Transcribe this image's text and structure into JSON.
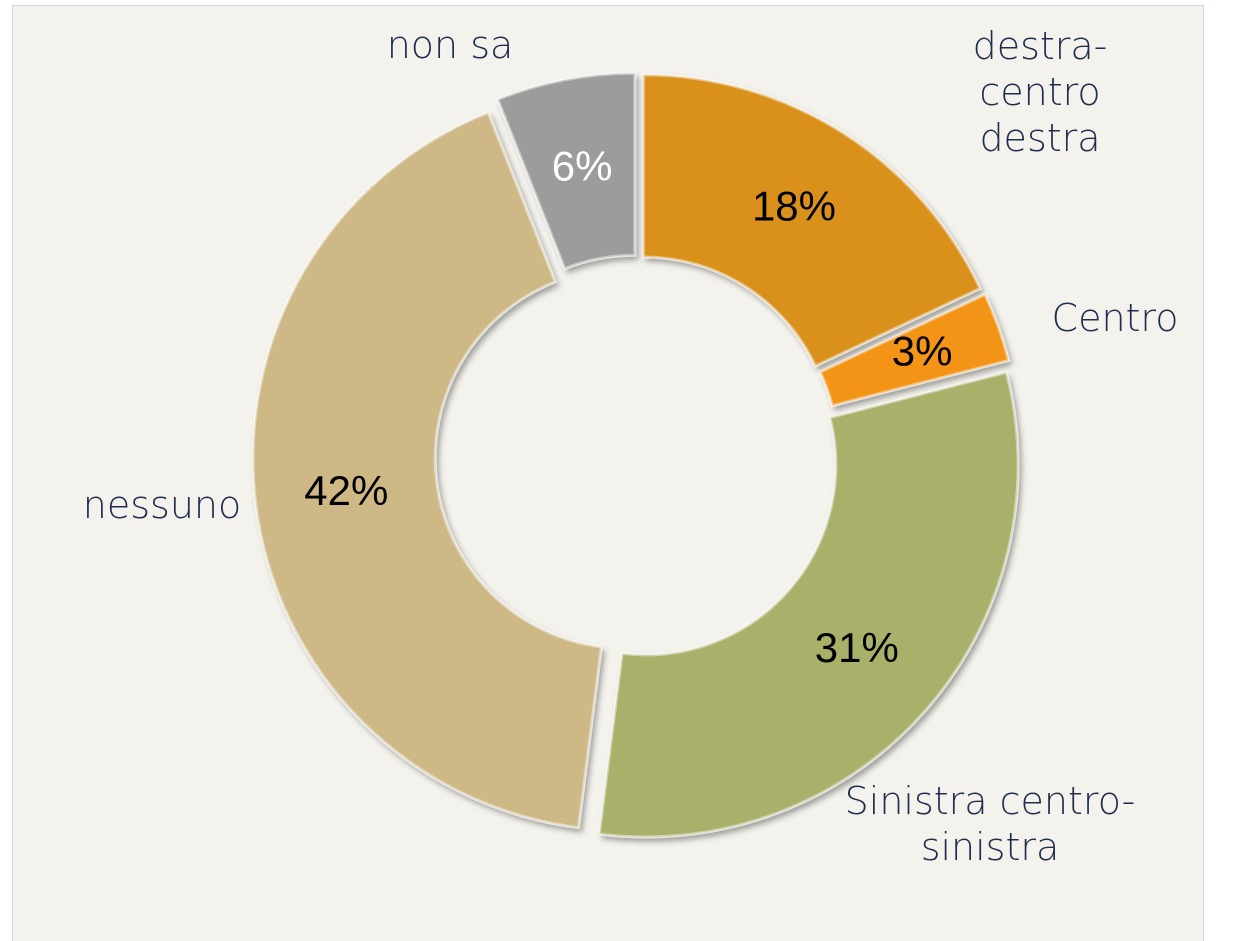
{
  "chart_data": {
    "type": "donut",
    "categories": [
      "destra-centro destra",
      "Centro",
      "Sinistra centro-sinistra",
      "nessuno",
      "non sa"
    ],
    "values": [
      18,
      3,
      31,
      42,
      6
    ],
    "value_labels": [
      "18%",
      "3%",
      "31%",
      "42%",
      "6%"
    ],
    "colors": [
      "#D9911A",
      "#F39418",
      "#A9B06A",
      "#CDB886",
      "#9C9C9C"
    ]
  }
}
